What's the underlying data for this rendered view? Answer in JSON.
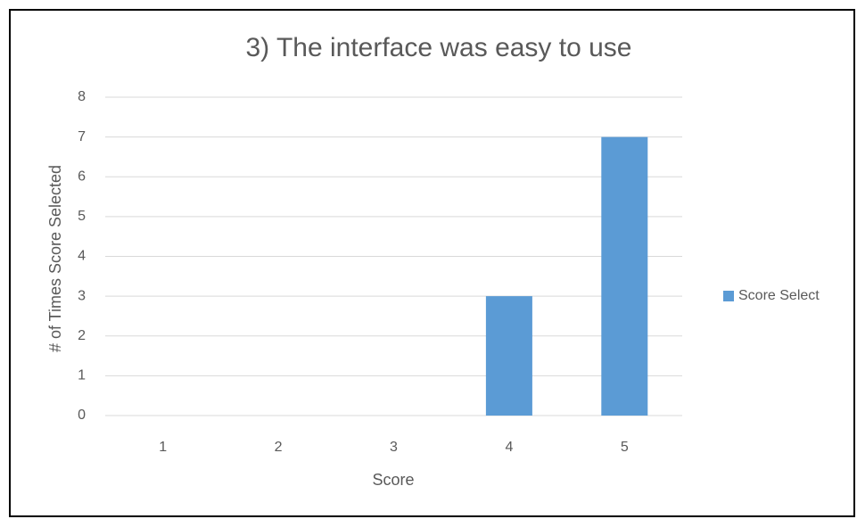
{
  "chart_data": {
    "type": "bar",
    "title": "3) The interface was easy to use",
    "x_label": "Score",
    "y_label": "# of Times Score Selected",
    "categories": [
      "1",
      "2",
      "3",
      "4",
      "5"
    ],
    "series": [
      {
        "name": "Score Select",
        "color": "#5b9bd5",
        "values": [
          0,
          0,
          0,
          3,
          7
        ]
      }
    ],
    "ylim": [
      0,
      8
    ],
    "yticks": [
      0,
      1,
      2,
      3,
      4,
      5,
      6,
      7,
      8
    ],
    "grid": true,
    "legend": "right"
  }
}
